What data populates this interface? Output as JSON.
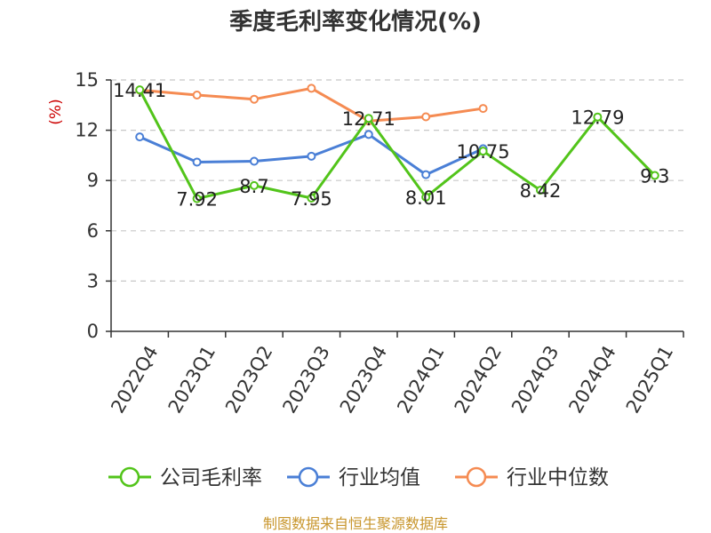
{
  "chart_data": {
    "type": "line",
    "title": "季度毛利率变化情况(%)",
    "y_unit": "(%)",
    "categories": [
      "2022Q4",
      "2023Q1",
      "2023Q2",
      "2023Q3",
      "2023Q4",
      "2024Q1",
      "2024Q2",
      "2024Q3",
      "2024Q4",
      "2025Q1"
    ],
    "ylim": [
      0,
      15
    ],
    "yticks": [
      "0",
      "3",
      "6",
      "9",
      "12",
      "15"
    ],
    "grid": true,
    "legend_position": "bottom",
    "series": [
      {
        "name": "公司毛利率",
        "color": "#52c41a",
        "values": [
          14.41,
          7.92,
          8.7,
          7.95,
          12.71,
          8.01,
          10.75,
          8.42,
          12.79,
          9.3
        ],
        "labels": [
          "14.41",
          "7.92",
          "8.7",
          "7.95",
          "12.71",
          "8.01",
          "10.75",
          "8.42",
          "12.79",
          "9.3"
        ]
      },
      {
        "name": "行业均值",
        "color": "#4a7fd6",
        "values": [
          11.6,
          10.1,
          10.15,
          10.45,
          11.75,
          9.35,
          10.9,
          null,
          null,
          null
        ]
      },
      {
        "name": "行业中位数",
        "color": "#f58b52",
        "values": [
          14.4,
          14.1,
          13.85,
          14.5,
          12.55,
          12.8,
          13.3,
          null,
          null,
          null
        ]
      }
    ]
  },
  "footer": "制图数据来自恒生聚源数据库"
}
